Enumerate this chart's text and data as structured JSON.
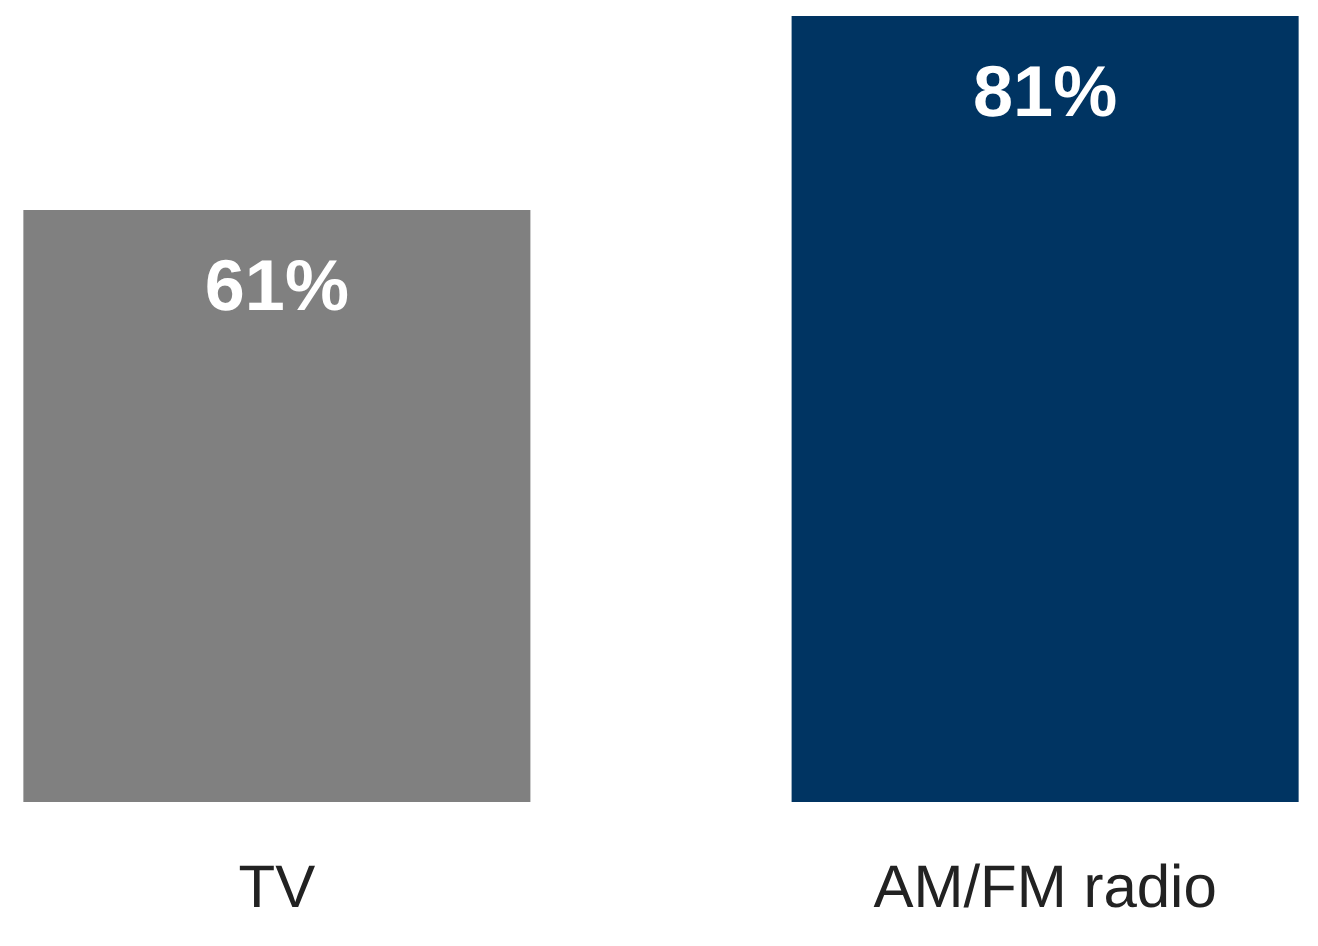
{
  "chart_data": {
    "type": "bar",
    "categories": [
      "TV",
      "AM/FM radio"
    ],
    "values": [
      61,
      81
    ],
    "colors": [
      "#808080",
      "#003462"
    ],
    "value_labels": [
      "61%",
      "81%"
    ]
  }
}
